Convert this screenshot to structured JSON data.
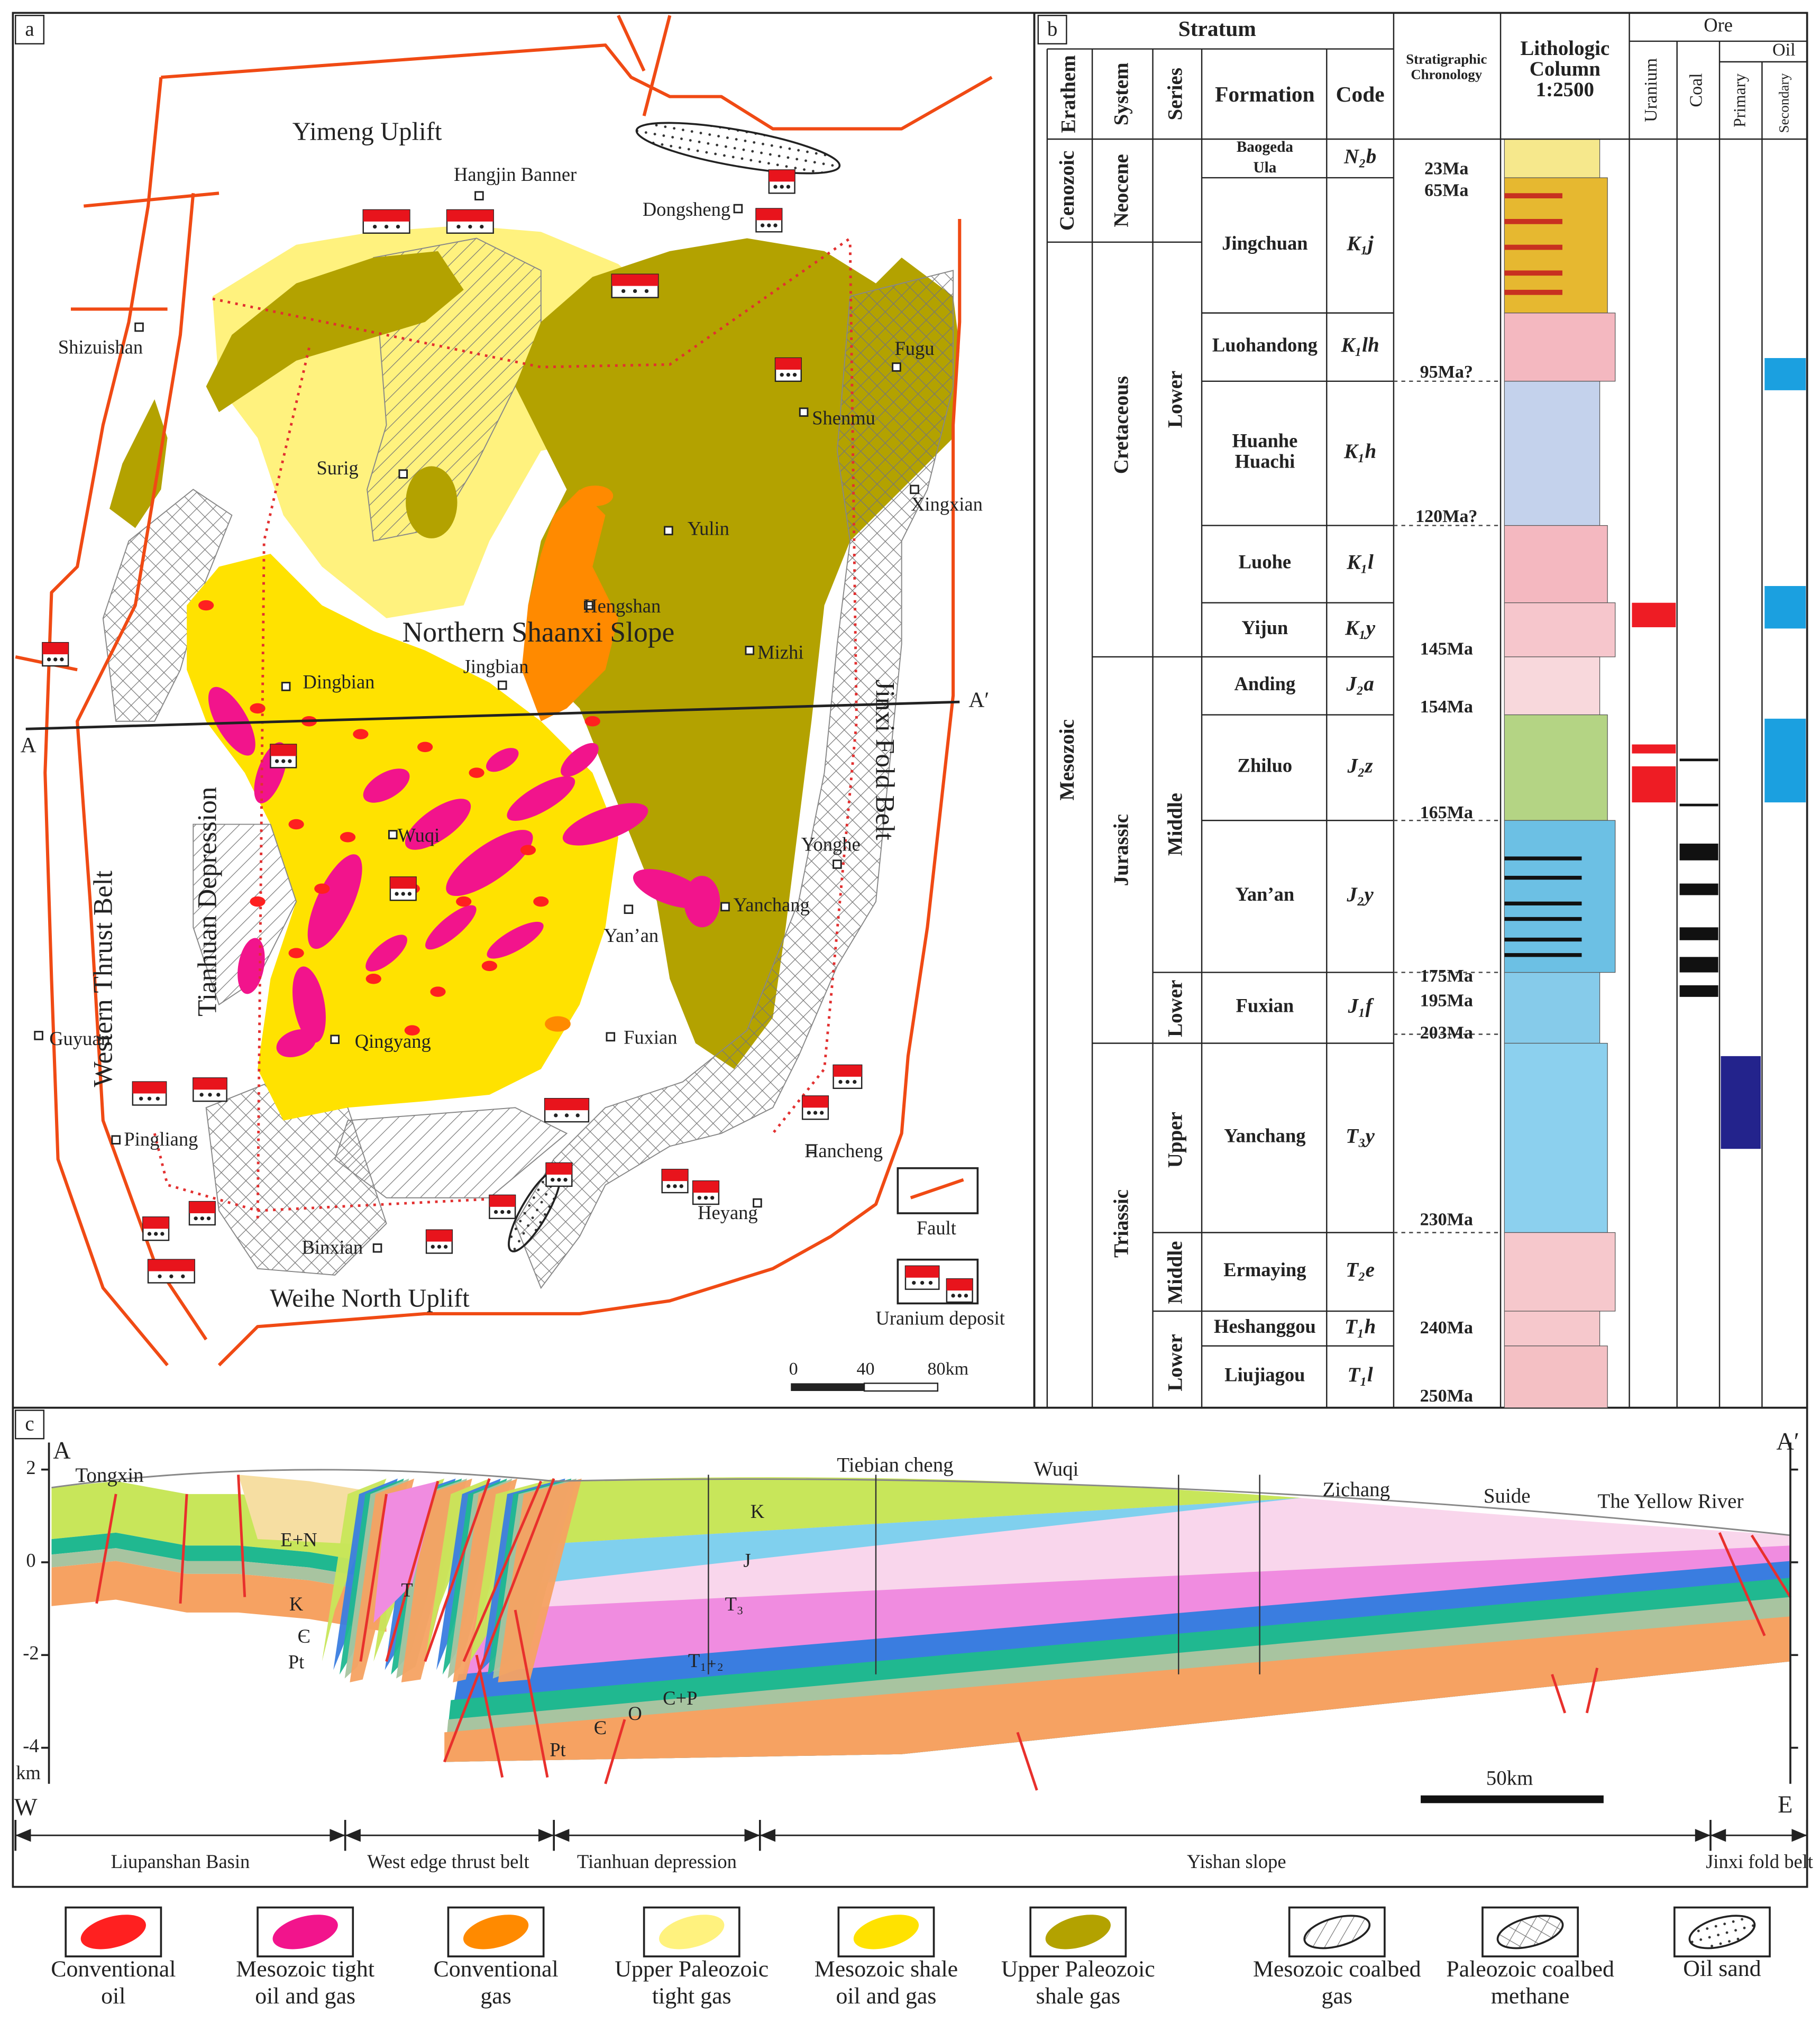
{
  "map": {
    "panel": "a",
    "regions": [
      "Yimeng Uplift",
      "Northern Shaanxi Slope",
      "Jinxi Fold Belt",
      "Western Thrust Belt",
      "Tianhuan Depression",
      "Weihe North Uplift"
    ],
    "places": [
      "Hangjin Banner",
      "Dongsheng",
      "Shizuishan",
      "Surig",
      "Fugu",
      "Shenmu",
      "Xingxian",
      "Yulin",
      "Hengshan",
      "Mizhi",
      "Jingbian",
      "Dingbian",
      "Wuqi",
      "Yonghe",
      "Yanchang",
      "Yan’an",
      "Guyuan",
      "Qingyang",
      "Fuxian",
      "Pingliang",
      "Hancheng",
      "Heyang",
      "Binxian"
    ],
    "section_ends": [
      "A",
      "A′"
    ],
    "fault": "Fault",
    "uranium": "Uranium deposit",
    "scale": [
      "0",
      "40",
      "80km"
    ]
  },
  "column": {
    "panel": "b",
    "stratum": "Stratum",
    "headers": {
      "erathem": "Erathem",
      "system": "System",
      "series": "Series",
      "formation": "Formation",
      "code": "Code",
      "chronology": [
        "Stratigraphic",
        "Chronology"
      ],
      "lithology": [
        "Lithologic",
        "Column",
        "1:2500"
      ],
      "ore": "Ore",
      "uranium": "Uranium",
      "coal": "Coal",
      "oil": "Oil",
      "primary": "Primary",
      "secondary": "Secondary"
    },
    "erathems": [
      "Cenozoic",
      "Mesozoic"
    ],
    "systems": [
      "Neocene",
      "Cretaceous",
      "Jurassic",
      "Triassic"
    ],
    "series": [
      "Lower",
      "Middle",
      "Lower",
      "Upper",
      "Middle",
      "Lower"
    ],
    "formations": [
      {
        "name": [
          "Baogeda",
          "Ula"
        ],
        "code": "N₂b"
      },
      {
        "name": [
          "Jingchuan"
        ],
        "code": "K₁j"
      },
      {
        "name": [
          "Luohandong"
        ],
        "code": "K₁lh"
      },
      {
        "name": [
          "Huanhe",
          "Huachi"
        ],
        "code": "K₁h"
      },
      {
        "name": [
          "Luohe"
        ],
        "code": "K₁l"
      },
      {
        "name": [
          "Yijun"
        ],
        "code": "K₁y"
      },
      {
        "name": [
          "Anding"
        ],
        "code": "J₂a"
      },
      {
        "name": [
          "Zhiluo"
        ],
        "code": "J₂z"
      },
      {
        "name": [
          "Yan’an"
        ],
        "code": "J₂y"
      },
      {
        "name": [
          "Fuxian"
        ],
        "code": "J₁f"
      },
      {
        "name": [
          "Yanchang"
        ],
        "code": "T₃y"
      },
      {
        "name": [
          "Ermaying"
        ],
        "code": "T₂e"
      },
      {
        "name": [
          "Heshanggou"
        ],
        "code": "T₁h"
      },
      {
        "name": [
          "Liujiagou"
        ],
        "code": "T₁l"
      }
    ],
    "ages": [
      "23Ma",
      "65Ma",
      "95Ma?",
      "120Ma?",
      "145Ma",
      "154Ma",
      "165Ma",
      "175Ma",
      "195Ma",
      "203Ma",
      "230Ma",
      "240Ma",
      "250Ma"
    ]
  },
  "section": {
    "panel": "c",
    "ends": [
      "A",
      "A′"
    ],
    "places": [
      "Tongxin",
      "Tiebian cheng",
      "Wuqi",
      "Zichang",
      "Suide",
      "The Yellow River"
    ],
    "units": [
      "E+N",
      "K",
      "Є",
      "Pt",
      "T",
      "K",
      "J",
      "T₃",
      "T₁₊₂",
      "C+P",
      "O",
      "Є",
      "Pt"
    ],
    "depth_ticks": [
      2,
      0,
      -2,
      -4
    ],
    "depth_unit": "km",
    "scale": "50km",
    "directions": [
      "W",
      "E"
    ],
    "zones": [
      "Liupanshan Basin",
      "West edge thrust belt",
      "Tianhuan depression",
      "Yishan slope",
      "Jinxi fold belt"
    ]
  },
  "legend": [
    [
      "Conventional",
      "oil"
    ],
    [
      "Mesozoic tight",
      "oil and gas"
    ],
    [
      "Conventional",
      "gas"
    ],
    [
      "Upper Paleozoic",
      "tight gas"
    ],
    [
      "Mesozoic shale",
      "oil and gas"
    ],
    [
      "Upper Paleozoic",
      "shale gas"
    ],
    [
      "Mesozoic coalbed",
      "gas"
    ],
    [
      "Paleozoic coalbed",
      "methane"
    ],
    [
      "Oil sand"
    ]
  ]
}
